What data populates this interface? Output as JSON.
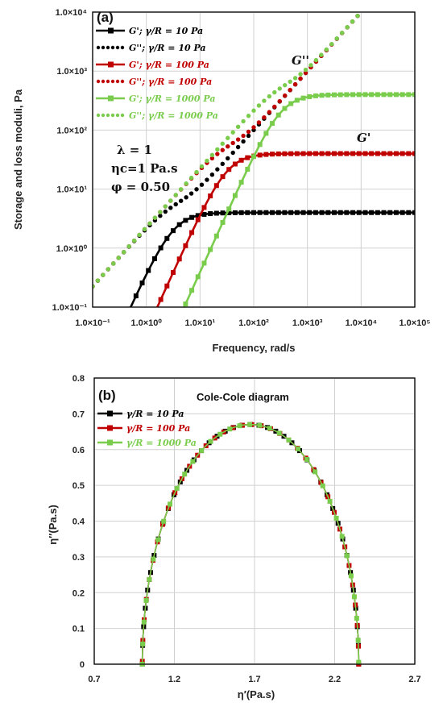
{
  "chart_data": [
    {
      "panel_label": "(a)",
      "type": "line",
      "scale": {
        "x": "log",
        "y": "log"
      },
      "xlim": [
        0.1,
        100000
      ],
      "ylim": [
        0.1,
        10000
      ],
      "x_ticks": [
        "1.0×10⁻¹",
        "1.0×10⁰",
        "1.0×10¹",
        "1.0×10²",
        "1.0×10³",
        "1.0×10⁴",
        "1.0×10⁵"
      ],
      "y_ticks": [
        "1.0×10⁻¹",
        "1.0×10⁰",
        "1.0×10¹",
        "1.0×10²",
        "1.0×10³",
        "1.0×10⁴"
      ],
      "xlabel": "Frequency, rad/s",
      "ylabel": "Storage and loss moduli, Pa",
      "grid": true,
      "legend_position": "top-left",
      "parameters": [
        "λ = 1",
        "ηc=1 Pa.s",
        "φ = 0.50"
      ],
      "annotations": [
        "G''",
        "G'"
      ],
      "series": [
        {
          "name": "G'; γ/R = 10 Pa",
          "style": "solid-square",
          "color": "#000000",
          "plateau": 4,
          "crossover": 3.2
        },
        {
          "name": "G''; γ/R = 10 Pa",
          "style": "dotted",
          "color": "#000000",
          "plateau": 4,
          "crossover": 3.2
        },
        {
          "name": "G'; γ/R = 100 Pa",
          "style": "solid-square",
          "color": "#c00000",
          "plateau": 40,
          "crossover": 32
        },
        {
          "name": "G''; γ/R = 100 Pa",
          "style": "dotted",
          "color": "#c00000",
          "plateau": 40,
          "crossover": 32
        },
        {
          "name": "G'; γ/R = 1000 Pa",
          "style": "solid-square",
          "color": "#7acc4c",
          "plateau": 400,
          "crossover": 320
        },
        {
          "name": "G''; γ/R = 1000 Pa",
          "style": "dotted",
          "color": "#7acc4c",
          "plateau": 400,
          "crossover": 320
        }
      ]
    },
    {
      "panel_label": "(b)",
      "type": "scatter",
      "title": "Cole-Cole diagram",
      "xlim": [
        0.7,
        2.7
      ],
      "ylim": [
        0,
        0.8
      ],
      "x_ticks": [
        "0.7",
        "1.2",
        "1.7",
        "2.2",
        "2.7"
      ],
      "y_ticks": [
        "0",
        "0.1",
        "0.2",
        "0.3",
        "0.4",
        "0.5",
        "0.6",
        "0.7",
        "0.8"
      ],
      "xlabel": "η′(Pa.s)",
      "ylabel": "η′′(Pa.s)",
      "grid": true,
      "legend_position": "top-left",
      "arc": {
        "eta_min": 1.0,
        "eta_max": 2.35,
        "peak": 0.67
      },
      "series": [
        {
          "name": "γ/R = 10 Pa",
          "color": "#000000"
        },
        {
          "name": "γ/R = 100 Pa",
          "color": "#c00000"
        },
        {
          "name": "γ/R = 1000 Pa",
          "color": "#7acc4c"
        }
      ]
    }
  ]
}
